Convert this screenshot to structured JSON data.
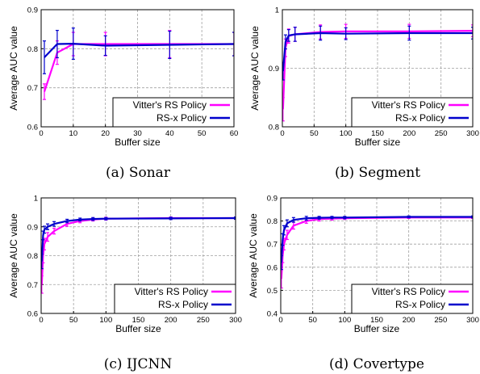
{
  "chart_data": [
    {
      "type": "line",
      "caption": "(a) Sonar",
      "xlabel": "Buffer size",
      "ylabel": "Average AUC value",
      "xlim": [
        0,
        60
      ],
      "ylim": [
        0.6,
        0.9
      ],
      "xticks": [
        "0",
        "10",
        "20",
        "30",
        "40",
        "50",
        "60"
      ],
      "yticks": [
        "0.6",
        "0.7",
        "0.8",
        "0.9"
      ],
      "grid": true,
      "legend_position": "bottom-right",
      "series": [
        {
          "name": "Vitter's RS Policy",
          "color": "#ff00ff",
          "x": [
            1,
            5,
            10,
            20,
            40,
            60
          ],
          "y": [
            0.69,
            0.79,
            0.812,
            0.812,
            0.812,
            0.812
          ],
          "err": [
            0.02,
            0.03,
            0.03,
            0.03,
            0.035,
            0.03
          ]
        },
        {
          "name": "RS-x Policy",
          "color": "#0000cc",
          "x": [
            1,
            5,
            10,
            20,
            40,
            60
          ],
          "y": [
            0.778,
            0.812,
            0.813,
            0.808,
            0.81,
            0.812
          ],
          "err": [
            0.042,
            0.035,
            0.04,
            0.025,
            0.035,
            0.03
          ]
        }
      ]
    },
    {
      "type": "line",
      "caption": "(b) Segment",
      "xlabel": "Buffer size",
      "ylabel": "Average AUC value",
      "xlim": [
        0,
        300
      ],
      "ylim": [
        0.8,
        1.0
      ],
      "xticks": [
        "0",
        "50",
        "100",
        "150",
        "200",
        "250",
        "300"
      ],
      "yticks": [
        "0.8",
        "0.9",
        "1"
      ],
      "grid": true,
      "legend_position": "bottom-right",
      "series": [
        {
          "name": "Vitter's RS Policy",
          "color": "#ff00ff",
          "x": [
            1,
            5,
            10,
            20,
            60,
            100,
            200,
            300
          ],
          "y": [
            0.83,
            0.935,
            0.955,
            0.958,
            0.962,
            0.963,
            0.963,
            0.964
          ],
          "err": [
            0.02,
            0.015,
            0.012,
            0.012,
            0.012,
            0.012,
            0.012,
            0.01
          ]
        },
        {
          "name": "RS-x Policy",
          "color": "#0000cc",
          "x": [
            1,
            5,
            10,
            20,
            60,
            100,
            200,
            300
          ],
          "y": [
            0.895,
            0.945,
            0.956,
            0.958,
            0.96,
            0.959,
            0.96,
            0.96
          ],
          "err": [
            0.015,
            0.012,
            0.01,
            0.012,
            0.012,
            0.01,
            0.012,
            0.01
          ]
        }
      ]
    },
    {
      "type": "line",
      "caption": "(c) IJCNN",
      "xlabel": "Buffer size",
      "ylabel": "Average AUC value",
      "xlim": [
        0,
        300
      ],
      "ylim": [
        0.6,
        1.0
      ],
      "xticks": [
        "0",
        "50",
        "100",
        "150",
        "200",
        "250",
        "300"
      ],
      "yticks": [
        "0.6",
        "0.7",
        "0.8",
        "0.9",
        "1"
      ],
      "grid": true,
      "legend_position": "bottom-right",
      "series": [
        {
          "name": "Vitter's RS Policy",
          "color": "#ff00ff",
          "x": [
            1,
            3,
            5,
            10,
            20,
            40,
            60,
            80,
            100,
            200,
            300
          ],
          "y": [
            0.7,
            0.8,
            0.84,
            0.865,
            0.885,
            0.91,
            0.92,
            0.925,
            0.928,
            0.93,
            0.93
          ],
          "err": [
            0.03,
            0.025,
            0.02,
            0.015,
            0.01,
            0.008,
            0.006,
            0.005,
            0.005,
            0.004,
            0.004
          ]
        },
        {
          "name": "RS-x Policy",
          "color": "#0000cc",
          "x": [
            1,
            3,
            5,
            10,
            20,
            40,
            60,
            80,
            100,
            200,
            300
          ],
          "y": [
            0.78,
            0.87,
            0.89,
            0.9,
            0.91,
            0.92,
            0.925,
            0.927,
            0.928,
            0.929,
            0.93
          ],
          "err": [
            0.025,
            0.015,
            0.012,
            0.01,
            0.008,
            0.006,
            0.005,
            0.005,
            0.004,
            0.004,
            0.004
          ]
        }
      ]
    },
    {
      "type": "line",
      "caption": "(d) Covertype",
      "xlabel": "Buffer size",
      "ylabel": "Average AUC value",
      "xlim": [
        0,
        300
      ],
      "ylim": [
        0.4,
        0.9
      ],
      "xticks": [
        "0",
        "50",
        "100",
        "150",
        "200",
        "250",
        "300"
      ],
      "yticks": [
        "0.4",
        "0.5",
        "0.6",
        "0.7",
        "0.8",
        "0.9"
      ],
      "grid": true,
      "legend_position": "bottom-right",
      "series": [
        {
          "name": "Vitter's RS Policy",
          "color": "#ff00ff",
          "x": [
            1,
            3,
            5,
            10,
            20,
            40,
            60,
            80,
            100,
            200,
            300
          ],
          "y": [
            0.55,
            0.65,
            0.7,
            0.74,
            0.78,
            0.8,
            0.808,
            0.81,
            0.812,
            0.815,
            0.815
          ],
          "err": [
            0.04,
            0.03,
            0.025,
            0.02,
            0.015,
            0.01,
            0.008,
            0.006,
            0.005,
            0.004,
            0.004
          ]
        },
        {
          "name": "RS-x Policy",
          "color": "#0000cc",
          "x": [
            1,
            3,
            5,
            10,
            20,
            40,
            60,
            80,
            100,
            200,
            300
          ],
          "y": [
            0.62,
            0.72,
            0.76,
            0.79,
            0.805,
            0.812,
            0.814,
            0.815,
            0.815,
            0.818,
            0.818
          ],
          "err": [
            0.03,
            0.025,
            0.02,
            0.015,
            0.01,
            0.008,
            0.006,
            0.005,
            0.005,
            0.004,
            0.004
          ]
        }
      ]
    }
  ]
}
